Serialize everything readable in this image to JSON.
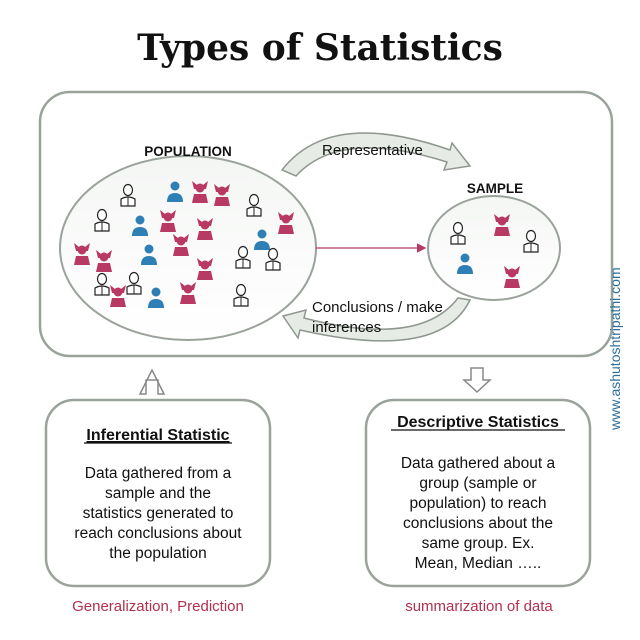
{
  "title": "Types of Statistics",
  "population": {
    "label": "POPULATION"
  },
  "sample": {
    "label": "SAMPLE"
  },
  "arrows": {
    "top_label": "Representative",
    "bottom_label_line1": "Conclusions / make",
    "bottom_label_line2": "inferences"
  },
  "inferential": {
    "heading": "Inferential Statistic",
    "lines": [
      "Data gathered from a",
      "sample and the",
      "statistics generated to",
      "reach conclusions about",
      "the population"
    ],
    "caption": "Generalization, Prediction"
  },
  "descriptive": {
    "heading": "Descriptive Statistics",
    "lines": [
      "Data gathered about a",
      "group (sample or",
      "population) to reach",
      "conclusions about the",
      "same group. Ex.",
      "Mean, Median ….."
    ],
    "caption": "summarization of data"
  },
  "watermark": "www.ashutoshtripathi.com",
  "colors": {
    "pink": "#b83a64",
    "blue": "#2e7fb5",
    "outline": "#222222",
    "caption": "#b0304f",
    "border": "#9aa39a",
    "arrow_fill": "#e6ebe6"
  }
}
